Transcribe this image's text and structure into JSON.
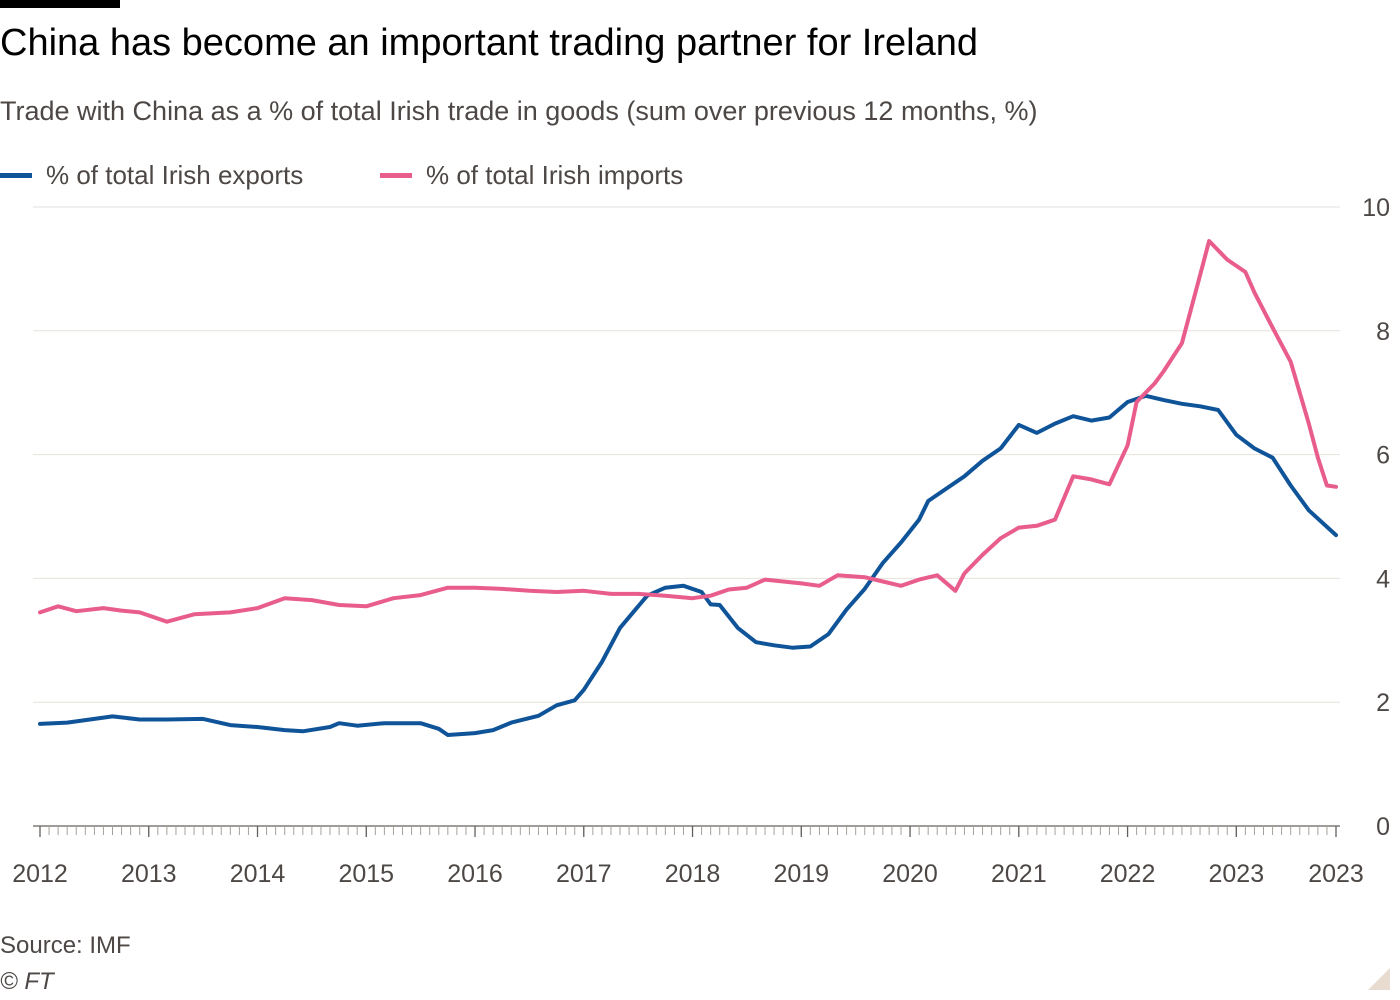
{
  "header": {
    "title": "China has become an important trading partner for Ireland",
    "subtitle": "Trade with China as a % of total Irish trade in goods (sum over previous 12 months, %)"
  },
  "footer": {
    "source": "Source: IMF",
    "copyright": "© FT"
  },
  "colors": {
    "exports": "#0f5499",
    "imports": "#e95d8c",
    "grid": "#e6e2dc",
    "axis": "#66605c",
    "text": "#4d4845"
  },
  "chart_data": {
    "type": "line",
    "title": "China has become an important trading partner for Ireland",
    "subtitle": "Trade with China as a % of total Irish trade in goods (sum over previous 12 months, %)",
    "xlabel": "",
    "ylabel": "",
    "x_axis": {
      "type": "time",
      "range": [
        "2012-01",
        "2023-12"
      ],
      "tick_labels": [
        "2012",
        "2013",
        "2014",
        "2015",
        "2016",
        "2017",
        "2018",
        "2019",
        "2020",
        "2021",
        "2022",
        "2023",
        "2023"
      ],
      "tick_positions": [
        "2012-01",
        "2013-01",
        "2014-01",
        "2015-01",
        "2016-01",
        "2017-01",
        "2018-01",
        "2019-01",
        "2020-01",
        "2021-01",
        "2022-01",
        "2023-01",
        "2023-12"
      ],
      "minor_ticks": "monthly"
    },
    "y_axis": {
      "range": [
        0,
        10
      ],
      "ticks": [
        0,
        2,
        4,
        6,
        8,
        10
      ],
      "position": "right",
      "grid": true
    },
    "legend_position": "top-left",
    "series": [
      {
        "name": "% of total Irish exports",
        "color": "#0f5499",
        "points": [
          [
            "2012-01",
            1.65
          ],
          [
            "2012-04",
            1.67
          ],
          [
            "2012-07",
            1.73
          ],
          [
            "2012-09",
            1.77
          ],
          [
            "2012-12",
            1.72
          ],
          [
            "2013-03",
            1.72
          ],
          [
            "2013-07",
            1.73
          ],
          [
            "2013-10",
            1.63
          ],
          [
            "2014-01",
            1.6
          ],
          [
            "2014-04",
            1.55
          ],
          [
            "2014-06",
            1.53
          ],
          [
            "2014-09",
            1.6
          ],
          [
            "2014-10",
            1.66
          ],
          [
            "2014-12",
            1.62
          ],
          [
            "2015-03",
            1.66
          ],
          [
            "2015-07",
            1.66
          ],
          [
            "2015-09",
            1.57
          ],
          [
            "2015-10",
            1.47
          ],
          [
            "2016-01",
            1.5
          ],
          [
            "2016-03",
            1.55
          ],
          [
            "2016-05",
            1.67
          ],
          [
            "2016-08",
            1.78
          ],
          [
            "2016-10",
            1.95
          ],
          [
            "2016-12",
            2.03
          ],
          [
            "2017-01",
            2.2
          ],
          [
            "2017-03",
            2.65
          ],
          [
            "2017-05",
            3.2
          ],
          [
            "2017-07",
            3.55
          ],
          [
            "2017-08",
            3.72
          ],
          [
            "2017-10",
            3.85
          ],
          [
            "2017-12",
            3.88
          ],
          [
            "2018-02",
            3.78
          ],
          [
            "2018-03",
            3.58
          ],
          [
            "2018-04",
            3.57
          ],
          [
            "2018-06",
            3.2
          ],
          [
            "2018-08",
            2.97
          ],
          [
            "2018-10",
            2.92
          ],
          [
            "2018-12",
            2.88
          ],
          [
            "2019-02",
            2.9
          ],
          [
            "2019-04",
            3.1
          ],
          [
            "2019-06",
            3.5
          ],
          [
            "2019-08",
            3.83
          ],
          [
            "2019-10",
            4.25
          ],
          [
            "2019-12",
            4.58
          ],
          [
            "2020-02",
            4.95
          ],
          [
            "2020-03",
            5.25
          ],
          [
            "2020-05",
            5.45
          ],
          [
            "2020-07",
            5.65
          ],
          [
            "2020-09",
            5.9
          ],
          [
            "2020-11",
            6.1
          ],
          [
            "2021-01",
            6.48
          ],
          [
            "2021-03",
            6.35
          ],
          [
            "2021-05",
            6.5
          ],
          [
            "2021-07",
            6.62
          ],
          [
            "2021-09",
            6.55
          ],
          [
            "2021-11",
            6.6
          ],
          [
            "2022-01",
            6.85
          ],
          [
            "2022-03",
            6.95
          ],
          [
            "2022-05",
            6.88
          ],
          [
            "2022-07",
            6.82
          ],
          [
            "2022-09",
            6.78
          ],
          [
            "2022-11",
            6.72
          ],
          [
            "2023-01",
            6.32
          ],
          [
            "2023-03",
            6.1
          ],
          [
            "2023-05",
            5.95
          ],
          [
            "2023-07",
            5.5
          ],
          [
            "2023-09",
            5.1
          ],
          [
            "2023-12",
            4.7
          ]
        ]
      },
      {
        "name": "% of total Irish imports",
        "color": "#e95d8c",
        "points": [
          [
            "2012-01",
            3.45
          ],
          [
            "2012-03",
            3.55
          ],
          [
            "2012-05",
            3.47
          ],
          [
            "2012-08",
            3.52
          ],
          [
            "2012-10",
            3.48
          ],
          [
            "2012-12",
            3.45
          ],
          [
            "2013-03",
            3.3
          ],
          [
            "2013-06",
            3.42
          ],
          [
            "2013-10",
            3.45
          ],
          [
            "2014-01",
            3.52
          ],
          [
            "2014-04",
            3.68
          ],
          [
            "2014-07",
            3.65
          ],
          [
            "2014-10",
            3.57
          ],
          [
            "2015-01",
            3.55
          ],
          [
            "2015-04",
            3.68
          ],
          [
            "2015-07",
            3.73
          ],
          [
            "2015-10",
            3.85
          ],
          [
            "2016-01",
            3.85
          ],
          [
            "2016-04",
            3.83
          ],
          [
            "2016-07",
            3.8
          ],
          [
            "2016-10",
            3.78
          ],
          [
            "2017-01",
            3.8
          ],
          [
            "2017-04",
            3.75
          ],
          [
            "2017-07",
            3.75
          ],
          [
            "2017-10",
            3.72
          ],
          [
            "2018-01",
            3.68
          ],
          [
            "2018-03",
            3.72
          ],
          [
            "2018-05",
            3.82
          ],
          [
            "2018-07",
            3.85
          ],
          [
            "2018-09",
            3.98
          ],
          [
            "2018-11",
            3.95
          ],
          [
            "2019-01",
            3.92
          ],
          [
            "2019-03",
            3.88
          ],
          [
            "2019-05",
            4.05
          ],
          [
            "2019-08",
            4.02
          ],
          [
            "2019-10",
            3.95
          ],
          [
            "2019-12",
            3.88
          ],
          [
            "2020-02",
            3.98
          ],
          [
            "2020-04",
            4.05
          ],
          [
            "2020-06",
            3.8
          ],
          [
            "2020-07",
            4.08
          ],
          [
            "2020-09",
            4.38
          ],
          [
            "2020-11",
            4.65
          ],
          [
            "2021-01",
            4.82
          ],
          [
            "2021-03",
            4.85
          ],
          [
            "2021-05",
            4.95
          ],
          [
            "2021-07",
            5.65
          ],
          [
            "2021-09",
            5.6
          ],
          [
            "2021-11",
            5.52
          ],
          [
            "2022-01",
            6.15
          ],
          [
            "2022-02",
            6.85
          ],
          [
            "2022-04",
            7.15
          ],
          [
            "2022-05",
            7.35
          ],
          [
            "2022-07",
            7.8
          ],
          [
            "2022-09",
            8.9
          ],
          [
            "2022-10",
            9.45
          ],
          [
            "2022-12",
            9.15
          ],
          [
            "2023-02",
            8.95
          ],
          [
            "2023-03",
            8.62
          ],
          [
            "2023-05",
            8.05
          ],
          [
            "2023-07",
            7.5
          ],
          [
            "2023-09",
            6.5
          ],
          [
            "2023-10",
            5.95
          ],
          [
            "2023-11",
            5.5
          ],
          [
            "2023-12",
            5.48
          ]
        ]
      }
    ]
  }
}
